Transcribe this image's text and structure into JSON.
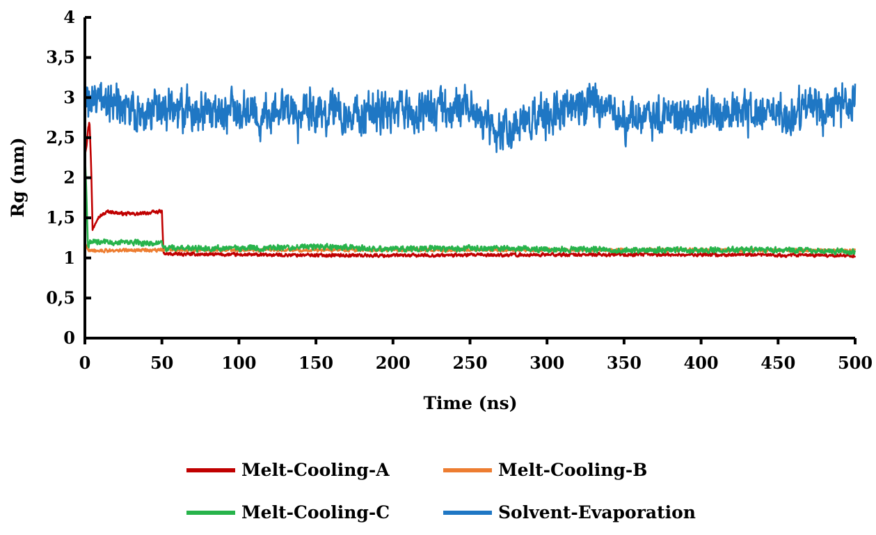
{
  "chart_data": {
    "type": "line",
    "title": "",
    "xlabel": "Time (ns)",
    "ylabel": "Rg (nm)",
    "xlim": [
      0,
      500
    ],
    "ylim": [
      0,
      4
    ],
    "x_ticks": [
      0,
      50,
      100,
      150,
      200,
      250,
      300,
      350,
      400,
      450,
      500
    ],
    "y_ticks": [
      0,
      0.5,
      1,
      1.5,
      2,
      2.5,
      3,
      3.5,
      4
    ],
    "y_tick_labels": [
      "0",
      "0,5",
      "1",
      "1,5",
      "2",
      "2,5",
      "3",
      "3,5",
      "4"
    ],
    "grid": false,
    "legend_position": "bottom",
    "series": [
      {
        "name": "Melt-Cooling-A",
        "color": "#c00000",
        "noise": 0.02,
        "points": [
          [
            0,
            2.3
          ],
          [
            1,
            2.4
          ],
          [
            2,
            2.6
          ],
          [
            3,
            2.7
          ],
          [
            4,
            2.2
          ],
          [
            5,
            1.35
          ],
          [
            8,
            1.5
          ],
          [
            15,
            1.58
          ],
          [
            25,
            1.55
          ],
          [
            35,
            1.55
          ],
          [
            45,
            1.57
          ],
          [
            50,
            1.58
          ],
          [
            51,
            1.05
          ],
          [
            100,
            1.04
          ],
          [
            200,
            1.03
          ],
          [
            300,
            1.04
          ],
          [
            400,
            1.04
          ],
          [
            500,
            1.03
          ]
        ]
      },
      {
        "name": "Melt-Cooling-B",
        "color": "#ed7d31",
        "noise": 0.02,
        "points": [
          [
            0,
            1.2
          ],
          [
            2,
            1.1
          ],
          [
            10,
            1.09
          ],
          [
            50,
            1.1
          ],
          [
            100,
            1.1
          ],
          [
            200,
            1.1
          ],
          [
            300,
            1.1
          ],
          [
            400,
            1.1
          ],
          [
            500,
            1.09
          ]
        ]
      },
      {
        "name": "Melt-Cooling-C",
        "color": "#27b34b",
        "noise": 0.035,
        "points": [
          [
            0,
            2.3
          ],
          [
            1,
            1.8
          ],
          [
            2,
            1.1
          ],
          [
            3,
            1.2
          ],
          [
            50,
            1.18
          ],
          [
            51,
            1.12
          ],
          [
            100,
            1.12
          ],
          [
            150,
            1.14
          ],
          [
            200,
            1.11
          ],
          [
            250,
            1.12
          ],
          [
            300,
            1.11
          ],
          [
            350,
            1.1
          ],
          [
            400,
            1.1
          ],
          [
            450,
            1.1
          ],
          [
            500,
            1.08
          ]
        ]
      },
      {
        "name": "Solvent-Evaporation",
        "color": "#1f77c4",
        "noise": 0.2,
        "points": [
          [
            0,
            3.0
          ],
          [
            25,
            2.85
          ],
          [
            50,
            2.85
          ],
          [
            100,
            2.8
          ],
          [
            150,
            2.8
          ],
          [
            200,
            2.85
          ],
          [
            250,
            2.85
          ],
          [
            265,
            2.6
          ],
          [
            300,
            2.8
          ],
          [
            330,
            2.95
          ],
          [
            350,
            2.75
          ],
          [
            400,
            2.8
          ],
          [
            450,
            2.8
          ],
          [
            500,
            2.9
          ]
        ]
      }
    ]
  }
}
